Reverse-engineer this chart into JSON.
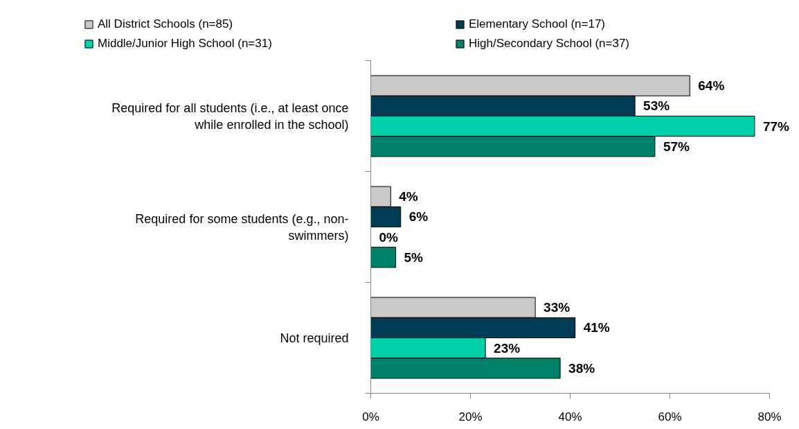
{
  "chart_data": {
    "type": "bar",
    "orientation": "horizontal",
    "categories": [
      "Required for all students (i.e., at least once while enrolled in the school)",
      "Required for some students (e.g., non-swimmers)",
      "Not required"
    ],
    "series": [
      {
        "name": "All District Schools (n=85)",
        "color": "#c8c8c8",
        "values": [
          64,
          4,
          33
        ],
        "value_labels": [
          "64%",
          "4%",
          "33%"
        ]
      },
      {
        "name": "Elementary School (n=17)",
        "color": "#023b55",
        "values": [
          53,
          6,
          41
        ],
        "value_labels": [
          "53%",
          "6%",
          "41%"
        ]
      },
      {
        "name": "Middle/Junior High School (n=31)",
        "color": "#00d0a8",
        "values": [
          77,
          0,
          23
        ],
        "value_labels": [
          "77%",
          "0%",
          "23%"
        ]
      },
      {
        "name": "High/Secondary School (n=37)",
        "color": "#007f69",
        "values": [
          57,
          5,
          38
        ],
        "value_labels": [
          "57%",
          "5%",
          "38%"
        ]
      }
    ],
    "xlim": [
      0,
      80
    ],
    "xticks": [
      {
        "value": 0,
        "label": "0%"
      },
      {
        "value": 20,
        "label": "20%"
      },
      {
        "value": 40,
        "label": "40%"
      },
      {
        "value": 60,
        "label": "60%"
      },
      {
        "value": 80,
        "label": "80%"
      }
    ],
    "grid": false,
    "legend": "top"
  }
}
